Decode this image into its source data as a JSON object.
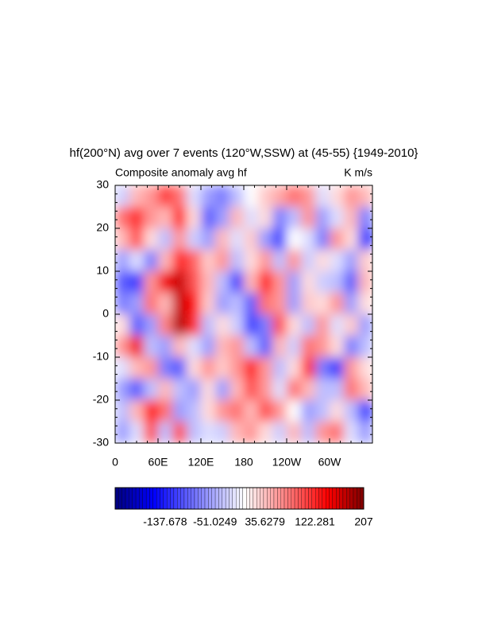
{
  "chart_data": {
    "type": "heatmap",
    "title": "hf(200°N) avg over 7 events (120°W,SSW) at (45-55) {1949-2010}",
    "left_subtitle": "Composite anomaly avg hf",
    "right_subtitle": "K m/s",
    "x": [
      10,
      30,
      50,
      70,
      90,
      110,
      130,
      150,
      170,
      190,
      210,
      230,
      250,
      270,
      290,
      310,
      330,
      350
    ],
    "y": [
      27.5,
      22.5,
      17.5,
      12.5,
      7.5,
      2.5,
      -2.5,
      -7.5,
      -12.5,
      -17.5,
      -22.5,
      -27.5
    ],
    "z": [
      [
        -30,
        40,
        60,
        110,
        80,
        -20,
        -60,
        -80,
        -40,
        0,
        30,
        50,
        80,
        60,
        -20,
        20,
        60,
        40
      ],
      [
        80,
        120,
        60,
        40,
        130,
        20,
        -100,
        -60,
        40,
        -20,
        20,
        -80,
        -40,
        60,
        -60,
        -20,
        40,
        -80
      ],
      [
        40,
        100,
        20,
        -40,
        60,
        -30,
        -60,
        40,
        -20,
        30,
        -60,
        -120,
        0,
        -20,
        -80,
        60,
        20,
        -130
      ],
      [
        -60,
        -20,
        -80,
        40,
        130,
        90,
        30,
        60,
        -40,
        20,
        60,
        -40,
        60,
        -30,
        20,
        -20,
        -60,
        30
      ],
      [
        -100,
        -120,
        60,
        150,
        170,
        100,
        40,
        -40,
        -120,
        40,
        140,
        60,
        -60,
        20,
        -30,
        -40,
        -100,
        40
      ],
      [
        -80,
        -60,
        80,
        40,
        170,
        140,
        30,
        -60,
        -40,
        -100,
        80,
        60,
        -60,
        30,
        20,
        60,
        -60,
        20
      ],
      [
        20,
        -100,
        -60,
        70,
        180,
        120,
        -40,
        20,
        -30,
        -120,
        -80,
        100,
        20,
        -40,
        60,
        -20,
        30,
        -60
      ],
      [
        60,
        150,
        -40,
        -60,
        40,
        -20,
        -60,
        40,
        60,
        -40,
        -100,
        40,
        -30,
        80,
        60,
        20,
        -80,
        -40
      ],
      [
        -20,
        40,
        60,
        -80,
        -100,
        20,
        60,
        30,
        60,
        130,
        60,
        -40,
        20,
        120,
        -80,
        -120,
        60,
        20
      ],
      [
        -60,
        -100,
        -40,
        40,
        -40,
        -60,
        20,
        -60,
        40,
        100,
        60,
        -20,
        80,
        40,
        -40,
        -40,
        80,
        40
      ],
      [
        -40,
        40,
        140,
        80,
        -60,
        -40,
        20,
        60,
        80,
        40,
        100,
        60,
        0,
        -60,
        -40,
        20,
        -40,
        -120
      ],
      [
        -60,
        -20,
        100,
        -40,
        100,
        -40,
        -20,
        -30,
        40,
        60,
        20,
        -30,
        40,
        -40,
        60,
        80,
        -20,
        -60
      ]
    ],
    "xlim": [
      0,
      360
    ],
    "xticks": [
      0,
      {
        "value": 60,
        "label": "60E"
      },
      {
        "value": 120,
        "label": "120E"
      },
      180,
      {
        "value": 240,
        "label": "120W"
      },
      {
        "value": 300,
        "label": "60W"
      }
    ],
    "ylim": [
      -30,
      30
    ],
    "yticks": [
      -30,
      -20,
      -10,
      0,
      10,
      20,
      30
    ],
    "colorbar": {
      "lim": [
        -224.331,
        207
      ],
      "ticks": [
        -137.678,
        -51.0249,
        35.6279,
        122.281,
        207
      ]
    }
  }
}
